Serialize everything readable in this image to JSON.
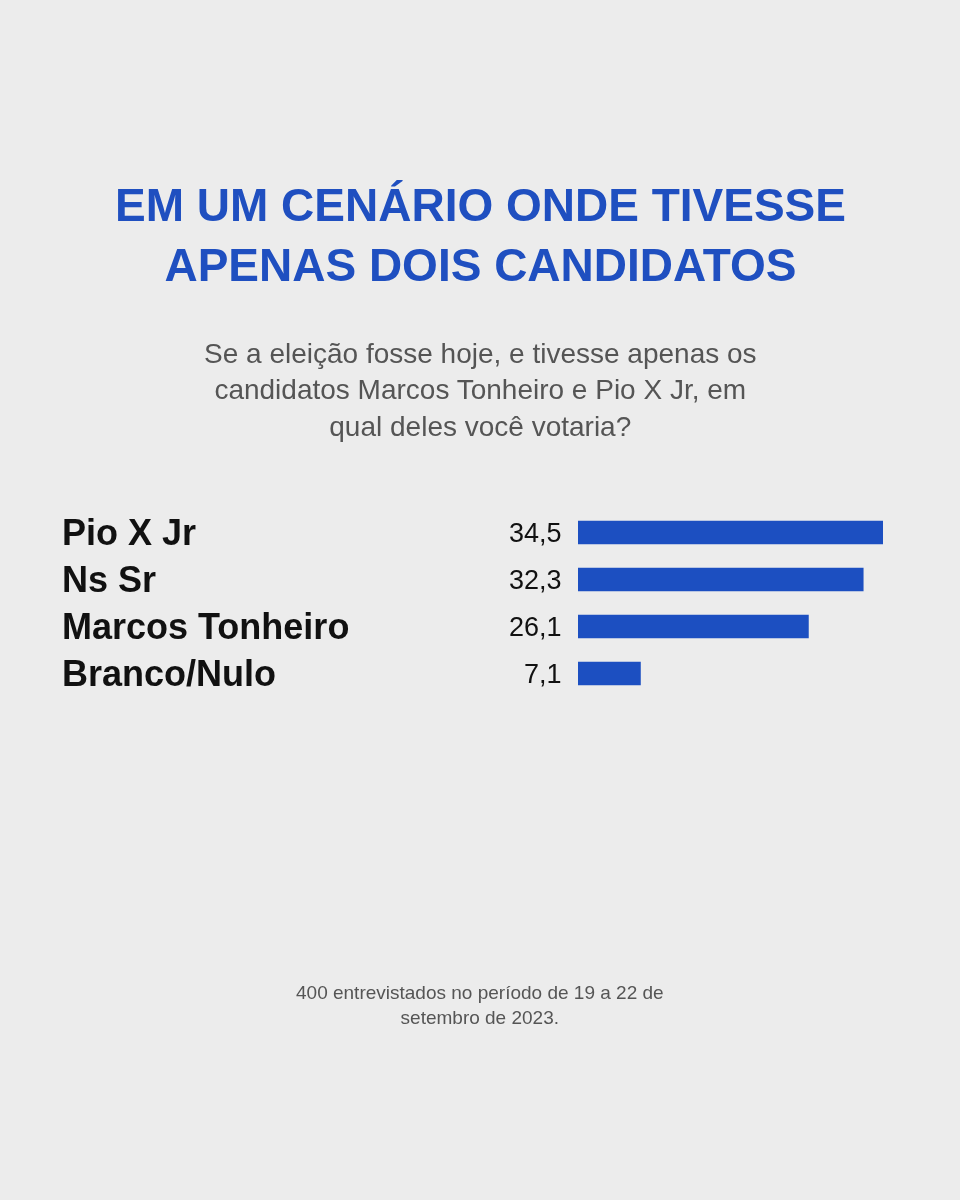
{
  "chart_data": {
    "type": "bar",
    "orientation": "horizontal",
    "title": "EM UM CENÁRIO ONDE TIVESSE APENAS DOIS CANDIDATOS",
    "subtitle": "Se a eleição fosse hoje, e tivesse apenas os candidatos Marcos Tonheiro e Pio X Jr, em qual deles você votaria?",
    "categories": [
      "Pio X Jr",
      "Ns Sr",
      "Marcos Tonheiro",
      "Branco/Nulo"
    ],
    "values": [
      34.5,
      32.3,
      26.1,
      7.1
    ],
    "value_labels": [
      "34,5",
      "32,3",
      "26,1",
      "7,1"
    ],
    "color": "#1c4fc1",
    "annotations": [
      "400 entrevistados no período de 19 a 22 de setembro de 2023."
    ]
  }
}
